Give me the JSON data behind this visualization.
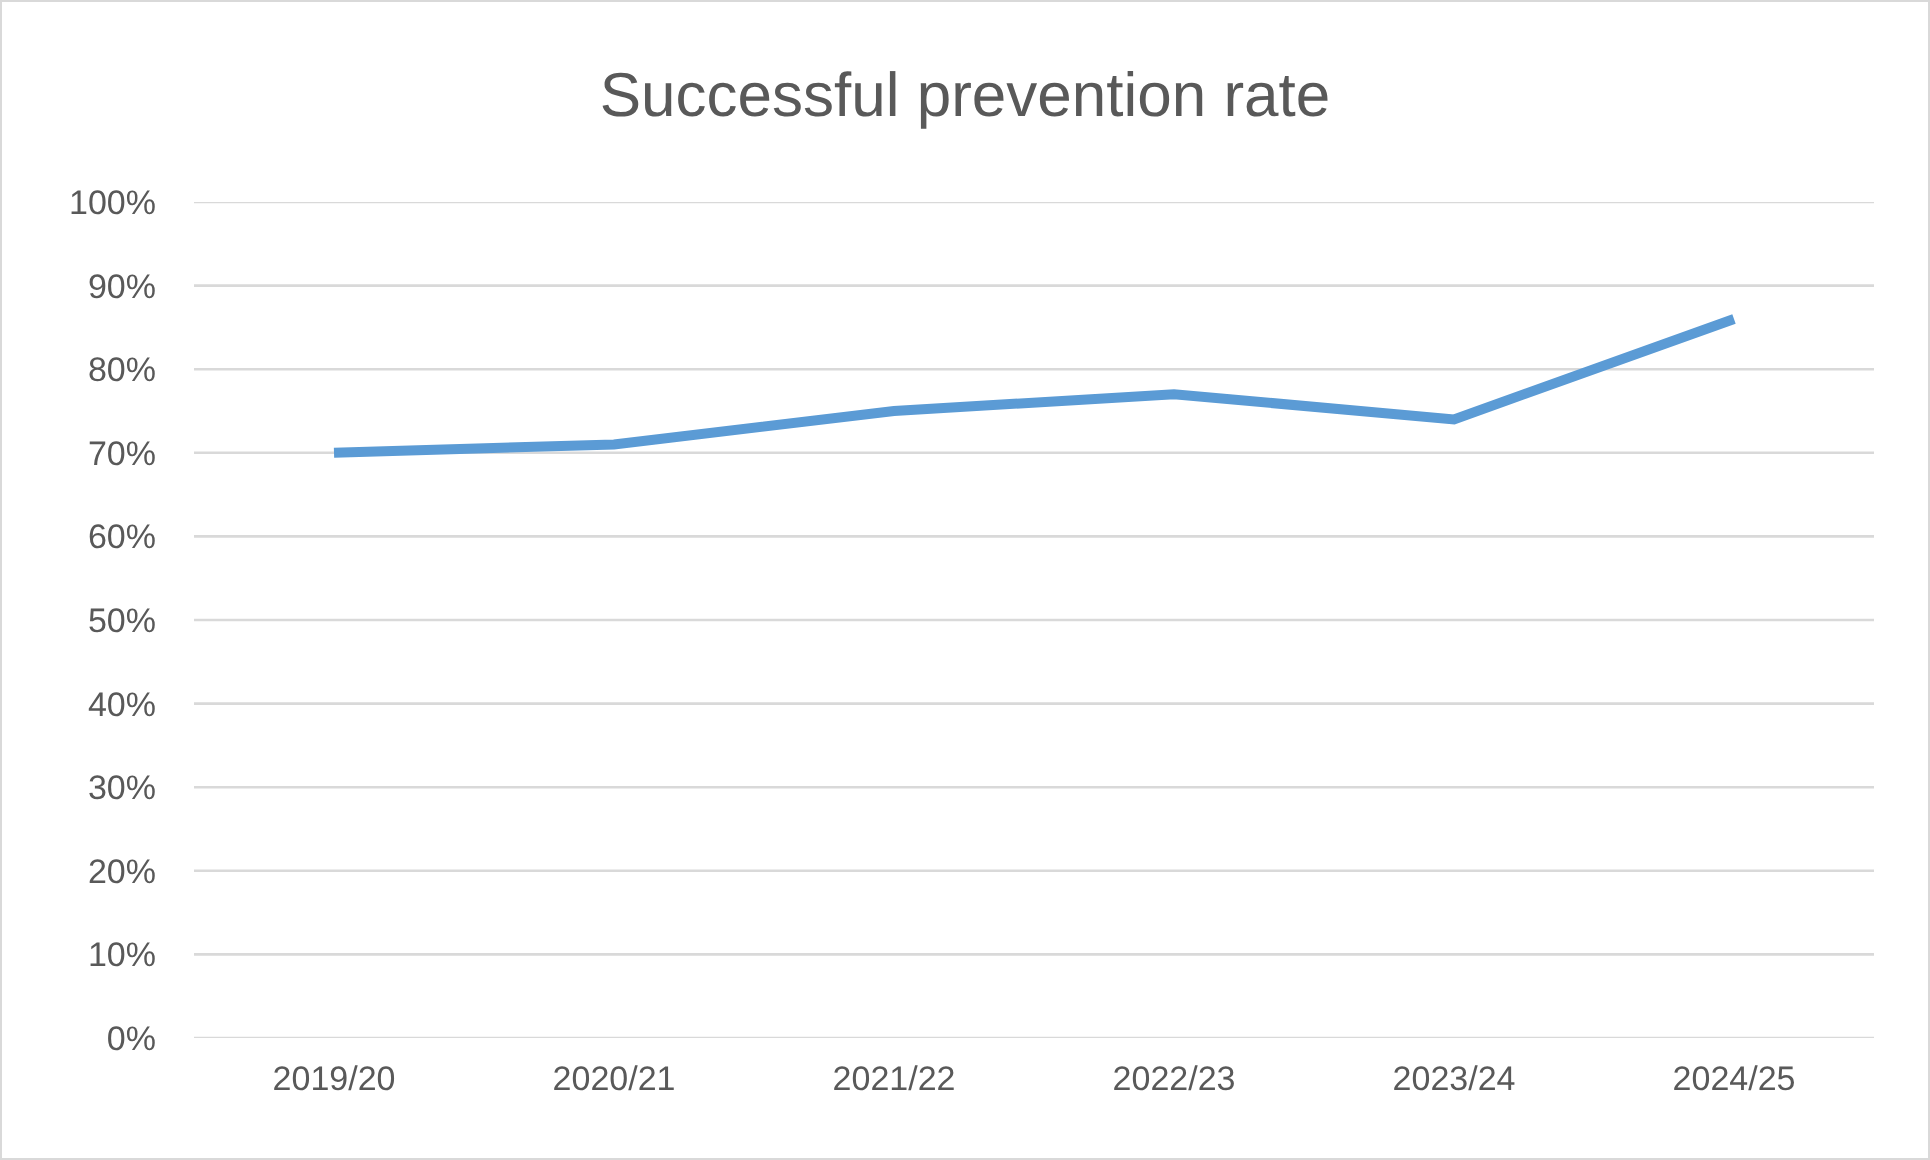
{
  "chart_data": {
    "type": "line",
    "title": "Successful prevention rate",
    "categories": [
      "2019/20",
      "2020/21",
      "2021/22",
      "2022/23",
      "2023/24",
      "2024/25"
    ],
    "series": [
      {
        "color": "#5b9bd5",
        "values": [
          70,
          71,
          75,
          77,
          74,
          86
        ]
      }
    ],
    "ylim": [
      0,
      100
    ],
    "yticks": [
      {
        "value": 0,
        "label": "0%"
      },
      {
        "value": 10,
        "label": "10%"
      },
      {
        "value": 20,
        "label": "20%"
      },
      {
        "value": 30,
        "label": "30%"
      },
      {
        "value": 40,
        "label": "40%"
      },
      {
        "value": 50,
        "label": "50%"
      },
      {
        "value": 60,
        "label": "60%"
      },
      {
        "value": 70,
        "label": "70%"
      },
      {
        "value": 80,
        "label": "80%"
      },
      {
        "value": 90,
        "label": "90%"
      },
      {
        "value": 100,
        "label": "100%"
      }
    ],
    "grid": "y",
    "marker": "none",
    "line_style": "solid"
  }
}
